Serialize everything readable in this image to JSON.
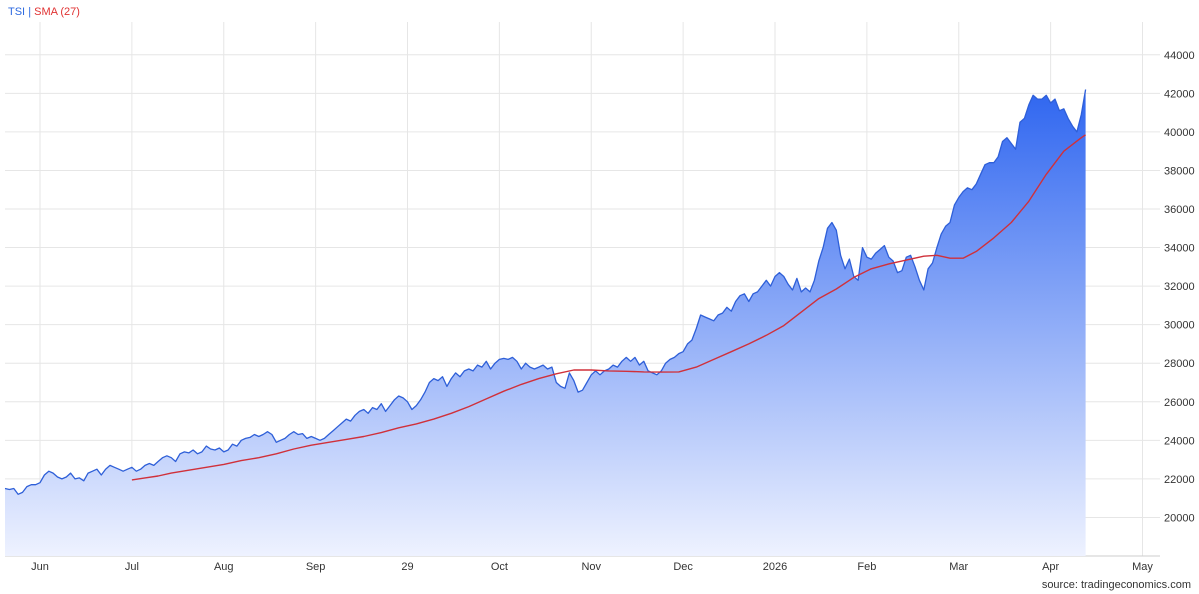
{
  "legend": {
    "tsi": "TSI",
    "separator": "|",
    "sma": "SMA (27)"
  },
  "source": "source: tradingeconomics.com",
  "colors": {
    "tsi_line": "#2e5fd8",
    "tsi_fill_top": "#2f66f0",
    "tsi_fill_bottom": "#eef2ff",
    "sma_line": "#d0303a",
    "grid": "#e6e6e6",
    "text": "#333333"
  },
  "chart_data": {
    "type": "area",
    "grid": true,
    "legend_position": "top-left",
    "y_axis_side": "right",
    "ylim": [
      18000,
      45700
    ],
    "y_ticks": [
      20000,
      22000,
      24000,
      26000,
      28000,
      30000,
      32000,
      34000,
      36000,
      38000,
      40000,
      42000,
      44000
    ],
    "x_tick_labels": [
      "Jun",
      "Jul",
      "Aug",
      "Sep",
      "29",
      "Oct",
      "Nov",
      "Dec",
      "2026",
      "Feb",
      "Mar",
      "Apr",
      "May"
    ],
    "x_tick_positions": [
      8,
      29,
      50,
      71,
      92,
      113,
      134,
      155,
      176,
      197,
      218,
      239,
      260
    ],
    "x_range": [
      0,
      264
    ],
    "series": [
      {
        "name": "TSI",
        "points": [
          [
            0,
            21500
          ],
          [
            1,
            21450
          ],
          [
            2,
            21500
          ],
          [
            3,
            21200
          ],
          [
            4,
            21300
          ],
          [
            5,
            21600
          ],
          [
            6,
            21700
          ],
          [
            7,
            21700
          ],
          [
            8,
            21800
          ],
          [
            9,
            22200
          ],
          [
            10,
            22400
          ],
          [
            11,
            22300
          ],
          [
            12,
            22100
          ],
          [
            13,
            22000
          ],
          [
            14,
            22100
          ],
          [
            15,
            22300
          ],
          [
            16,
            22000
          ],
          [
            17,
            22050
          ],
          [
            18,
            21900
          ],
          [
            19,
            22300
          ],
          [
            20,
            22400
          ],
          [
            21,
            22500
          ],
          [
            22,
            22200
          ],
          [
            23,
            22500
          ],
          [
            24,
            22700
          ],
          [
            25,
            22600
          ],
          [
            26,
            22500
          ],
          [
            27,
            22400
          ],
          [
            28,
            22500
          ],
          [
            29,
            22600
          ],
          [
            30,
            22400
          ],
          [
            31,
            22500
          ],
          [
            32,
            22700
          ],
          [
            33,
            22800
          ],
          [
            34,
            22700
          ],
          [
            35,
            22900
          ],
          [
            36,
            23100
          ],
          [
            37,
            23200
          ],
          [
            38,
            23100
          ],
          [
            39,
            22900
          ],
          [
            40,
            23300
          ],
          [
            41,
            23400
          ],
          [
            42,
            23350
          ],
          [
            43,
            23500
          ],
          [
            44,
            23300
          ],
          [
            45,
            23400
          ],
          [
            46,
            23700
          ],
          [
            47,
            23550
          ],
          [
            48,
            23500
          ],
          [
            49,
            23600
          ],
          [
            50,
            23400
          ],
          [
            51,
            23500
          ],
          [
            52,
            23800
          ],
          [
            53,
            23700
          ],
          [
            54,
            24000
          ],
          [
            55,
            24100
          ],
          [
            56,
            24150
          ],
          [
            57,
            24300
          ],
          [
            58,
            24200
          ],
          [
            59,
            24300
          ],
          [
            60,
            24450
          ],
          [
            61,
            24300
          ],
          [
            62,
            23900
          ],
          [
            63,
            24000
          ],
          [
            64,
            24100
          ],
          [
            65,
            24300
          ],
          [
            66,
            24450
          ],
          [
            67,
            24300
          ],
          [
            68,
            24350
          ],
          [
            69,
            24100
          ],
          [
            70,
            24200
          ],
          [
            71,
            24100
          ],
          [
            72,
            24000
          ],
          [
            73,
            24100
          ],
          [
            74,
            24300
          ],
          [
            75,
            24500
          ],
          [
            76,
            24700
          ],
          [
            77,
            24900
          ],
          [
            78,
            25100
          ],
          [
            79,
            25000
          ],
          [
            80,
            25300
          ],
          [
            81,
            25500
          ],
          [
            82,
            25600
          ],
          [
            83,
            25400
          ],
          [
            84,
            25700
          ],
          [
            85,
            25600
          ],
          [
            86,
            25900
          ],
          [
            87,
            25500
          ],
          [
            88,
            25800
          ],
          [
            89,
            26100
          ],
          [
            90,
            26300
          ],
          [
            91,
            26200
          ],
          [
            92,
            26000
          ],
          [
            93,
            25600
          ],
          [
            94,
            25800
          ],
          [
            95,
            26100
          ],
          [
            96,
            26500
          ],
          [
            97,
            27000
          ],
          [
            98,
            27200
          ],
          [
            99,
            27100
          ],
          [
            100,
            27300
          ],
          [
            101,
            26800
          ],
          [
            102,
            27200
          ],
          [
            103,
            27500
          ],
          [
            104,
            27300
          ],
          [
            105,
            27600
          ],
          [
            106,
            27700
          ],
          [
            107,
            27600
          ],
          [
            108,
            27900
          ],
          [
            109,
            27800
          ],
          [
            110,
            28100
          ],
          [
            111,
            27700
          ],
          [
            112,
            28000
          ],
          [
            113,
            28200
          ],
          [
            114,
            28250
          ],
          [
            115,
            28200
          ],
          [
            116,
            28300
          ],
          [
            117,
            28100
          ],
          [
            118,
            27700
          ],
          [
            119,
            28000
          ],
          [
            120,
            27800
          ],
          [
            121,
            27700
          ],
          [
            122,
            27800
          ],
          [
            123,
            27900
          ],
          [
            124,
            27700
          ],
          [
            125,
            27800
          ],
          [
            126,
            27000
          ],
          [
            127,
            26800
          ],
          [
            128,
            26700
          ],
          [
            129,
            27500
          ],
          [
            130,
            27100
          ],
          [
            131,
            26500
          ],
          [
            132,
            26600
          ],
          [
            133,
            27000
          ],
          [
            134,
            27400
          ],
          [
            135,
            27600
          ],
          [
            136,
            27400
          ],
          [
            137,
            27600
          ],
          [
            138,
            27700
          ],
          [
            139,
            27900
          ],
          [
            140,
            27800
          ],
          [
            141,
            28100
          ],
          [
            142,
            28300
          ],
          [
            143,
            28100
          ],
          [
            144,
            28300
          ],
          [
            145,
            27900
          ],
          [
            146,
            28100
          ],
          [
            147,
            27600
          ],
          [
            148,
            27500
          ],
          [
            149,
            27400
          ],
          [
            150,
            27600
          ],
          [
            151,
            28000
          ],
          [
            152,
            28200
          ],
          [
            153,
            28300
          ],
          [
            154,
            28500
          ],
          [
            155,
            28600
          ],
          [
            156,
            29000
          ],
          [
            157,
            29200
          ],
          [
            158,
            29800
          ],
          [
            159,
            30500
          ],
          [
            160,
            30400
          ],
          [
            161,
            30300
          ],
          [
            162,
            30200
          ],
          [
            163,
            30500
          ],
          [
            164,
            30600
          ],
          [
            165,
            30900
          ],
          [
            166,
            30700
          ],
          [
            167,
            31200
          ],
          [
            168,
            31500
          ],
          [
            169,
            31600
          ],
          [
            170,
            31200
          ],
          [
            171,
            31600
          ],
          [
            172,
            31700
          ],
          [
            173,
            32000
          ],
          [
            174,
            32300
          ],
          [
            175,
            32000
          ],
          [
            176,
            32500
          ],
          [
            177,
            32700
          ],
          [
            178,
            32500
          ],
          [
            179,
            32100
          ],
          [
            180,
            31800
          ],
          [
            181,
            32400
          ],
          [
            182,
            31700
          ],
          [
            183,
            31900
          ],
          [
            184,
            31700
          ],
          [
            185,
            32300
          ],
          [
            186,
            33300
          ],
          [
            187,
            34000
          ],
          [
            188,
            35000
          ],
          [
            189,
            35300
          ],
          [
            190,
            34900
          ],
          [
            191,
            33600
          ],
          [
            192,
            32900
          ],
          [
            193,
            33400
          ],
          [
            194,
            32500
          ],
          [
            195,
            32300
          ],
          [
            196,
            34000
          ],
          [
            197,
            33500
          ],
          [
            198,
            33400
          ],
          [
            199,
            33700
          ],
          [
            200,
            33900
          ],
          [
            201,
            34100
          ],
          [
            202,
            33500
          ],
          [
            203,
            33300
          ],
          [
            204,
            32700
          ],
          [
            205,
            32800
          ],
          [
            206,
            33500
          ],
          [
            207,
            33600
          ],
          [
            208,
            33000
          ],
          [
            209,
            32300
          ],
          [
            210,
            31800
          ],
          [
            211,
            32900
          ],
          [
            212,
            33200
          ],
          [
            213,
            34000
          ],
          [
            214,
            34700
          ],
          [
            215,
            35100
          ],
          [
            216,
            35300
          ],
          [
            217,
            36200
          ],
          [
            218,
            36600
          ],
          [
            219,
            36900
          ],
          [
            220,
            37100
          ],
          [
            221,
            37000
          ],
          [
            222,
            37300
          ],
          [
            223,
            37800
          ],
          [
            224,
            38300
          ],
          [
            225,
            38400
          ],
          [
            226,
            38400
          ],
          [
            227,
            38700
          ],
          [
            228,
            39500
          ],
          [
            229,
            39700
          ],
          [
            230,
            39400
          ],
          [
            231,
            39100
          ],
          [
            232,
            40500
          ],
          [
            233,
            40700
          ],
          [
            234,
            41400
          ],
          [
            235,
            41900
          ],
          [
            236,
            41700
          ],
          [
            237,
            41700
          ],
          [
            238,
            41900
          ],
          [
            239,
            41500
          ],
          [
            240,
            41700
          ],
          [
            241,
            41100
          ],
          [
            242,
            41200
          ],
          [
            243,
            40700
          ],
          [
            244,
            40300
          ],
          [
            245,
            40000
          ],
          [
            246,
            40900
          ],
          [
            247,
            42200
          ]
        ]
      },
      {
        "name": "SMA (27)",
        "points": [
          [
            29,
            21950
          ],
          [
            32,
            22050
          ],
          [
            35,
            22150
          ],
          [
            38,
            22300
          ],
          [
            42,
            22450
          ],
          [
            46,
            22600
          ],
          [
            50,
            22750
          ],
          [
            54,
            22950
          ],
          [
            58,
            23100
          ],
          [
            62,
            23300
          ],
          [
            66,
            23550
          ],
          [
            70,
            23750
          ],
          [
            74,
            23900
          ],
          [
            78,
            24050
          ],
          [
            82,
            24200
          ],
          [
            86,
            24400
          ],
          [
            90,
            24650
          ],
          [
            94,
            24850
          ],
          [
            98,
            25100
          ],
          [
            102,
            25400
          ],
          [
            106,
            25750
          ],
          [
            110,
            26150
          ],
          [
            114,
            26550
          ],
          [
            118,
            26900
          ],
          [
            122,
            27200
          ],
          [
            126,
            27450
          ],
          [
            130,
            27650
          ],
          [
            134,
            27650
          ],
          [
            138,
            27600
          ],
          [
            142,
            27580
          ],
          [
            146,
            27550
          ],
          [
            150,
            27540
          ],
          [
            154,
            27550
          ],
          [
            158,
            27800
          ],
          [
            162,
            28200
          ],
          [
            166,
            28600
          ],
          [
            170,
            29000
          ],
          [
            174,
            29450
          ],
          [
            178,
            29950
          ],
          [
            182,
            30650
          ],
          [
            186,
            31350
          ],
          [
            190,
            31850
          ],
          [
            194,
            32450
          ],
          [
            198,
            32900
          ],
          [
            202,
            33150
          ],
          [
            206,
            33350
          ],
          [
            210,
            33550
          ],
          [
            213,
            33600
          ],
          [
            216,
            33450
          ],
          [
            219,
            33450
          ],
          [
            222,
            33800
          ],
          [
            226,
            34500
          ],
          [
            230,
            35300
          ],
          [
            234,
            36400
          ],
          [
            238,
            37800
          ],
          [
            242,
            39000
          ],
          [
            246,
            39700
          ],
          [
            247,
            39850
          ]
        ]
      }
    ]
  }
}
